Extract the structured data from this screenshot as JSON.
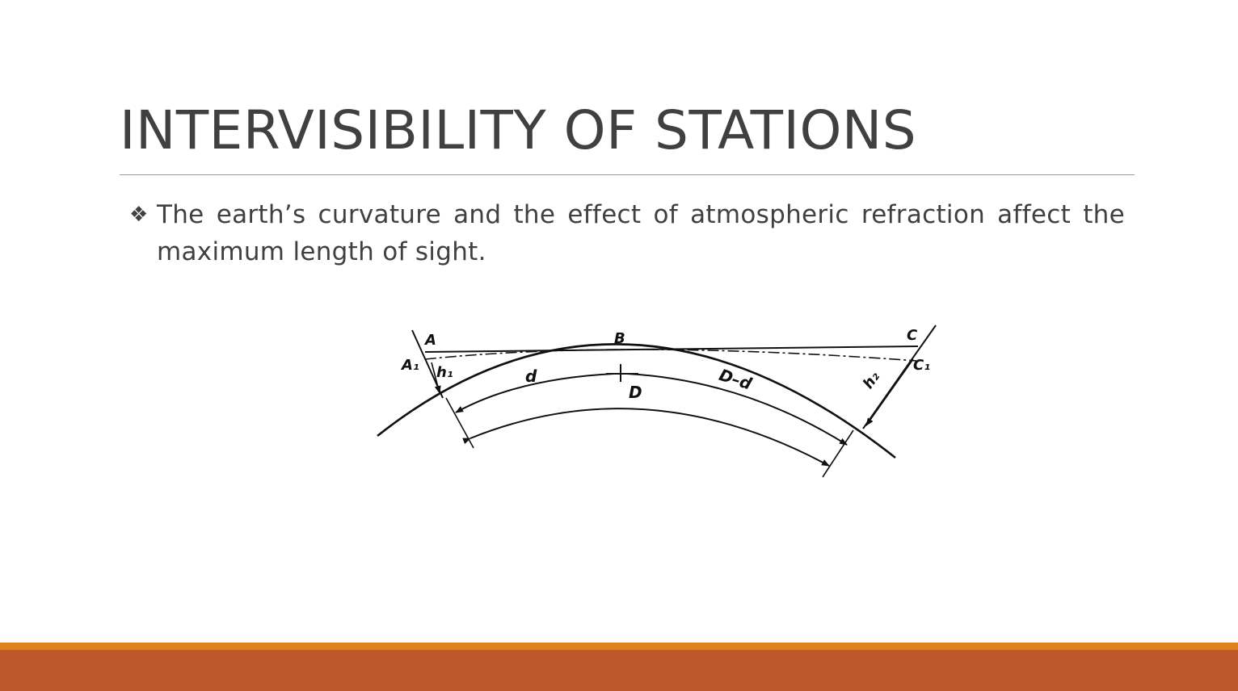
{
  "slide": {
    "title": "INTERVISIBILITY OF STATIONS",
    "bullet": {
      "icon": "diamond-bullet-icon",
      "glyph": "❖",
      "text": "The earth’s curvature and the effect of atmospheric refraction affect the maximum length of sight."
    }
  },
  "diagram": {
    "labels": {
      "A": "A",
      "A1": "A₁",
      "B": "B",
      "C": "C",
      "C1": "C₁",
      "h1": "h₁",
      "h2": "h₂",
      "d": "d",
      "D_minus_d": "D–d",
      "D": "D"
    }
  },
  "colors": {
    "text": "#404040",
    "footer_accent": "#e0801e",
    "footer_base": "#bd582c"
  }
}
